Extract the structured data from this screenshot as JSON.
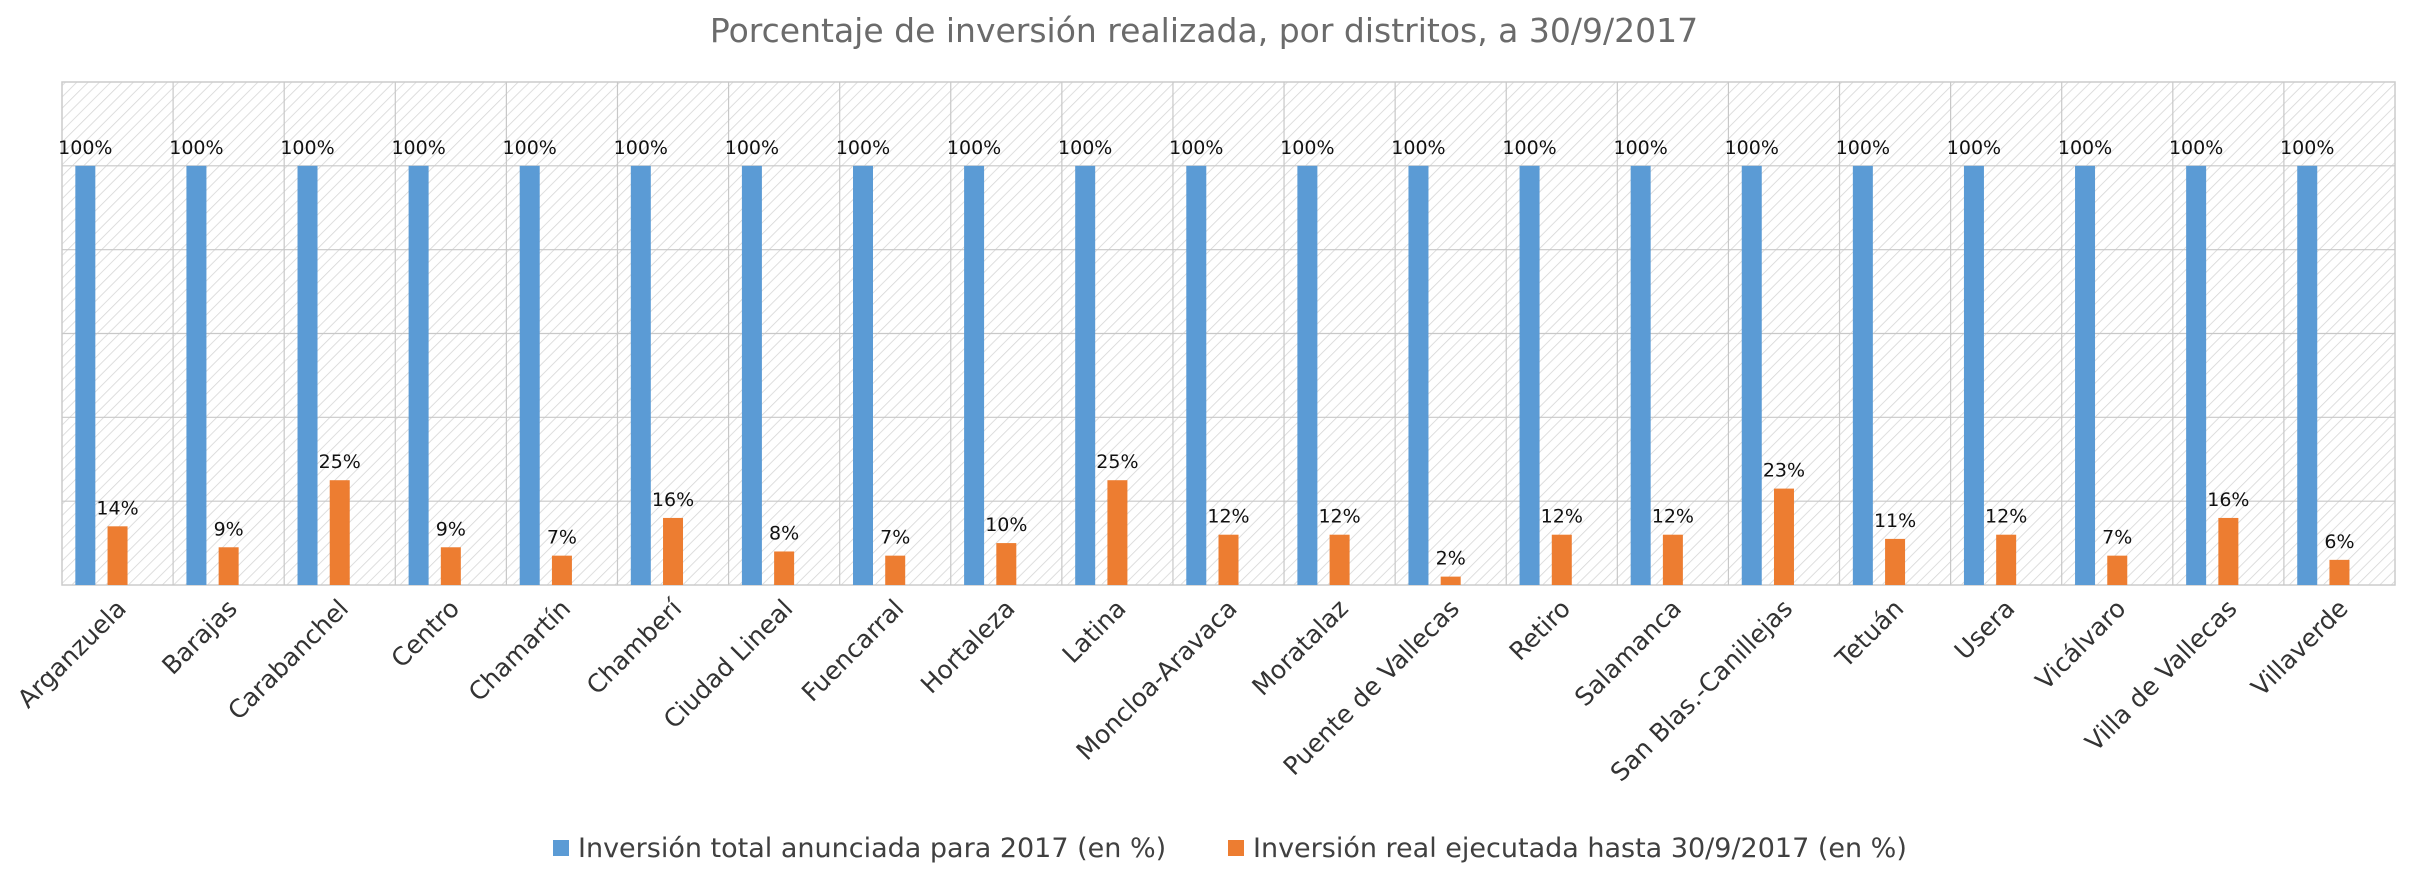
{
  "chart_data": {
    "type": "bar",
    "title": "Porcentaje de inversión realizada, por distritos, a 30/9/2017",
    "xlabel": "",
    "ylabel": "",
    "ylim": [
      0,
      120
    ],
    "grid": true,
    "legend_position": "bottom",
    "categories": [
      "Arganzuela",
      "Barajas",
      "Carabanchel",
      "Centro",
      "Chamartín",
      "Chamberí",
      "Ciudad Lineal",
      "Fuencarral",
      "Hortaleza",
      "Latina",
      "Moncloa-Aravaca",
      "Moratalaz",
      "Puente de Vallecas",
      "Retiro",
      "Salamanca",
      "San Blas.-Canillejas",
      "Tetuán",
      "Usera",
      "Vicálvaro",
      "Villa de Vallecas",
      "Villaverde"
    ],
    "series": [
      {
        "name": "Inversión total anunciada para 2017 (en %)",
        "color": "#5b9bd5",
        "values": [
          100,
          100,
          100,
          100,
          100,
          100,
          100,
          100,
          100,
          100,
          100,
          100,
          100,
          100,
          100,
          100,
          100,
          100,
          100,
          100,
          100
        ],
        "labels": [
          "100%",
          "100%",
          "100%",
          "100%",
          "100%",
          "100%",
          "100%",
          "100%",
          "100%",
          "100%",
          "100%",
          "100%",
          "100%",
          "100%",
          "100%",
          "100%",
          "100%",
          "100%",
          "100%",
          "100%",
          "100%"
        ]
      },
      {
        "name": "Inversión real ejecutada hasta 30/9/2017 (en %)",
        "color": "#ed7d31",
        "values": [
          14,
          9,
          25,
          9,
          7,
          16,
          8,
          7,
          10,
          25,
          12,
          12,
          2,
          12,
          12,
          23,
          11,
          12,
          7,
          16,
          6
        ],
        "labels": [
          "14%",
          "9%",
          "25%",
          "9%",
          "7%",
          "16%",
          "8%",
          "7%",
          "10%",
          "25%",
          "12%",
          "12%",
          "2%",
          "12%",
          "12%",
          "23%",
          "11%",
          "12%",
          "7%",
          "16%",
          "6%"
        ]
      }
    ]
  }
}
